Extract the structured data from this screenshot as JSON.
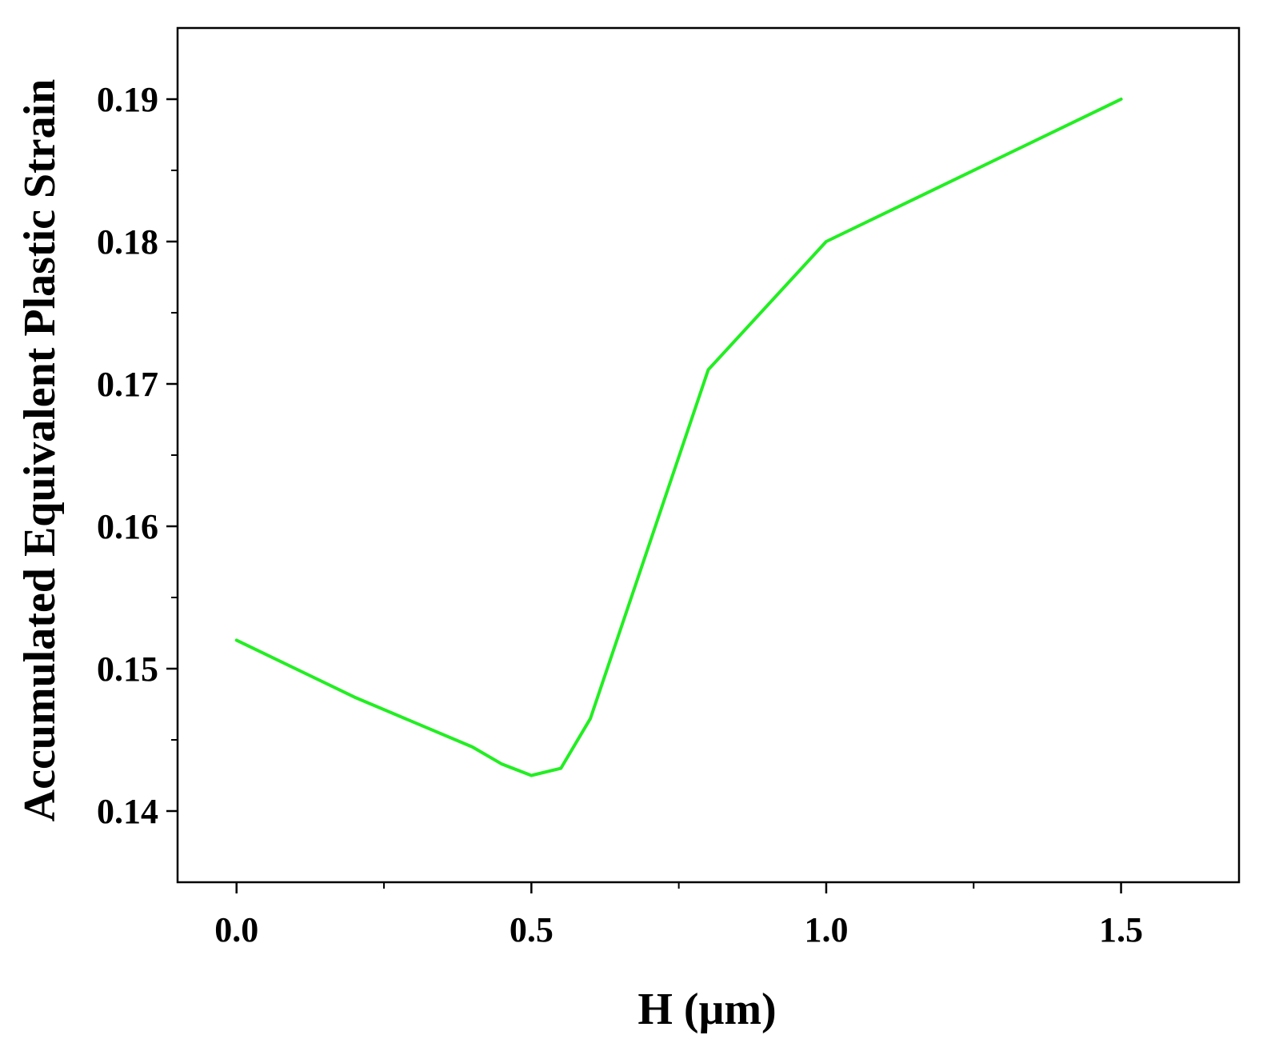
{
  "chart_data": {
    "type": "line",
    "title": "",
    "xlabel": "H (μm)",
    "ylabel": "Accumulated Equivalent Plastic Strain",
    "xlim": [
      -0.1,
      1.7
    ],
    "ylim": [
      0.135,
      0.195
    ],
    "x_ticks": [
      {
        "value": 0.0,
        "label": "0.0"
      },
      {
        "value": 0.5,
        "label": "0.5"
      },
      {
        "value": 1.0,
        "label": "1.0"
      },
      {
        "value": 1.5,
        "label": "1.5"
      }
    ],
    "x_minor_ticks": [
      0.25,
      0.75,
      1.25
    ],
    "y_ticks": [
      {
        "value": 0.14,
        "label": "0.14"
      },
      {
        "value": 0.15,
        "label": "0.15"
      },
      {
        "value": 0.16,
        "label": "0.16"
      },
      {
        "value": 0.17,
        "label": "0.17"
      },
      {
        "value": 0.18,
        "label": "0.18"
      },
      {
        "value": 0.19,
        "label": "0.19"
      }
    ],
    "y_minor_ticks": [
      0.145,
      0.155,
      0.165,
      0.175,
      0.185
    ],
    "grid": false,
    "legend": "none",
    "series": [
      {
        "color": "#22ee22",
        "x": [
          0.0,
          0.2,
          0.4,
          0.45,
          0.5,
          0.55,
          0.6,
          0.8,
          1.0,
          1.5
        ],
        "y": [
          0.152,
          0.148,
          0.1445,
          0.1433,
          0.1425,
          0.143,
          0.1465,
          0.171,
          0.18,
          0.19
        ]
      }
    ]
  }
}
